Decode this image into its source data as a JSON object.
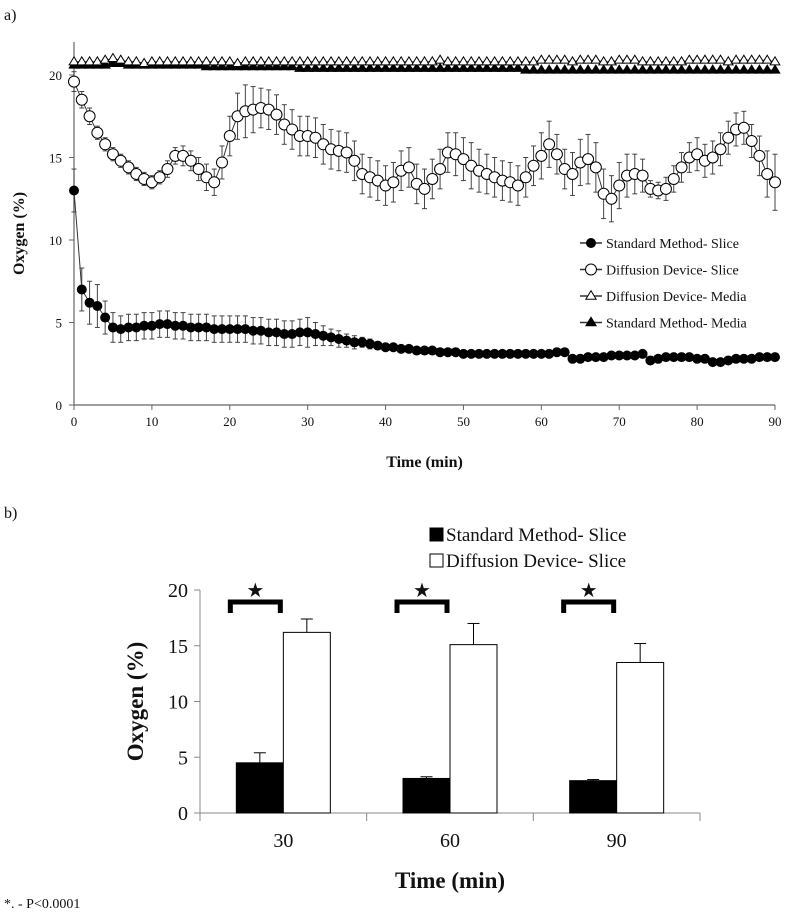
{
  "panel_a_label": "a)",
  "panel_b_label": "b)",
  "footnote": "*. - P<0.0001",
  "chart_data": [
    {
      "type": "line",
      "panel": "a",
      "title": "",
      "xlabel": "Time (min)",
      "ylabel": "Oxygen (%)",
      "xlim": [
        0,
        90
      ],
      "ylim": [
        0,
        22
      ],
      "xticks": [
        0,
        10,
        20,
        30,
        40,
        50,
        60,
        70,
        80,
        90
      ],
      "yticks": [
        0,
        5,
        10,
        15,
        20
      ],
      "legend_position": "right",
      "series": [
        {
          "name": "Standard Method- Slice",
          "marker": "filled-circle",
          "x": [
            0,
            1,
            2,
            3,
            4,
            5,
            6,
            7,
            8,
            9,
            10,
            11,
            12,
            13,
            14,
            15,
            16,
            17,
            18,
            19,
            20,
            21,
            22,
            23,
            24,
            25,
            26,
            27,
            28,
            29,
            30,
            31,
            32,
            33,
            34,
            35,
            36,
            37,
            38,
            39,
            40,
            41,
            42,
            43,
            44,
            45,
            46,
            47,
            48,
            49,
            50,
            51,
            52,
            53,
            54,
            55,
            56,
            57,
            58,
            59,
            60,
            61,
            62,
            63,
            64,
            65,
            66,
            67,
            68,
            69,
            70,
            71,
            72,
            73,
            74,
            75,
            76,
            77,
            78,
            79,
            80,
            81,
            82,
            83,
            84,
            85,
            86,
            87,
            88,
            89,
            90
          ],
          "y": [
            13.0,
            7.0,
            6.2,
            6.0,
            5.3,
            4.7,
            4.6,
            4.7,
            4.7,
            4.8,
            4.8,
            4.9,
            4.9,
            4.8,
            4.8,
            4.7,
            4.7,
            4.7,
            4.6,
            4.6,
            4.6,
            4.6,
            4.6,
            4.5,
            4.5,
            4.4,
            4.4,
            4.3,
            4.3,
            4.4,
            4.4,
            4.3,
            4.2,
            4.1,
            4.0,
            3.9,
            3.8,
            3.8,
            3.7,
            3.6,
            3.5,
            3.5,
            3.4,
            3.4,
            3.3,
            3.3,
            3.3,
            3.2,
            3.2,
            3.2,
            3.1,
            3.1,
            3.1,
            3.1,
            3.1,
            3.1,
            3.1,
            3.1,
            3.1,
            3.1,
            3.1,
            3.1,
            3.2,
            3.2,
            2.8,
            2.8,
            2.9,
            2.9,
            2.9,
            3.0,
            3.0,
            3.0,
            3.0,
            3.1,
            2.7,
            2.8,
            2.9,
            2.9,
            2.9,
            2.9,
            2.8,
            2.8,
            2.6,
            2.6,
            2.7,
            2.8,
            2.8,
            2.8,
            2.9,
            2.9,
            2.9
          ],
          "err": [
            1.3,
            1.3,
            1.3,
            1.3,
            1.0,
            0.9,
            0.8,
            0.8,
            0.8,
            0.8,
            0.8,
            0.8,
            0.8,
            0.8,
            0.8,
            0.8,
            0.8,
            0.8,
            0.8,
            0.8,
            0.8,
            0.8,
            0.8,
            0.8,
            0.8,
            0.8,
            0.8,
            0.8,
            0.8,
            0.8,
            0.9,
            0.7,
            0.6,
            0.5,
            0.5,
            0.4,
            0.4,
            0.3,
            0.3,
            0.2,
            0.2,
            0.2,
            0.2,
            0.1,
            0.1,
            0.1,
            0.1,
            0.1,
            0.1,
            0.1,
            0.1,
            0.1,
            0.1,
            0.1,
            0.1,
            0.1,
            0.1,
            0.1,
            0.1,
            0.1,
            0.1,
            0.1,
            0.1,
            0.1,
            0.1,
            0.1,
            0.1,
            0.1,
            0.1,
            0.1,
            0.1,
            0.1,
            0.1,
            0.1,
            0.1,
            0.1,
            0.1,
            0.1,
            0.1,
            0.1,
            0.1,
            0.1,
            0.1,
            0.1,
            0.1,
            0.1,
            0.1,
            0.1,
            0.1,
            0.1,
            0.1
          ]
        },
        {
          "name": "Diffusion Device- Slice",
          "marker": "open-circle",
          "x": [
            0,
            1,
            2,
            3,
            4,
            5,
            6,
            7,
            8,
            9,
            10,
            11,
            12,
            13,
            14,
            15,
            16,
            17,
            18,
            19,
            20,
            21,
            22,
            23,
            24,
            25,
            26,
            27,
            28,
            29,
            30,
            31,
            32,
            33,
            34,
            35,
            36,
            37,
            38,
            39,
            40,
            41,
            42,
            43,
            44,
            45,
            46,
            47,
            48,
            49,
            50,
            51,
            52,
            53,
            54,
            55,
            56,
            57,
            58,
            59,
            60,
            61,
            62,
            63,
            64,
            65,
            66,
            67,
            68,
            69,
            70,
            71,
            72,
            73,
            74,
            75,
            76,
            77,
            78,
            79,
            80,
            81,
            82,
            83,
            84,
            85,
            86,
            87,
            88,
            89,
            90
          ],
          "y": [
            19.6,
            18.5,
            17.5,
            16.5,
            15.8,
            15.2,
            14.8,
            14.4,
            14.0,
            13.7,
            13.5,
            13.8,
            14.3,
            15.1,
            15.1,
            14.8,
            14.3,
            13.8,
            13.5,
            14.7,
            16.3,
            17.5,
            17.8,
            17.9,
            18.0,
            17.9,
            17.6,
            17.0,
            16.7,
            16.3,
            16.3,
            16.2,
            15.8,
            15.5,
            15.4,
            15.3,
            14.8,
            14.0,
            13.8,
            13.6,
            13.3,
            13.5,
            14.2,
            14.4,
            13.4,
            13.1,
            13.7,
            14.3,
            15.3,
            15.2,
            14.9,
            14.5,
            14.2,
            14.0,
            13.8,
            13.6,
            13.5,
            13.3,
            13.8,
            14.5,
            15.1,
            15.8,
            15.2,
            14.3,
            14.0,
            14.7,
            14.9,
            14.4,
            12.8,
            12.5,
            13.3,
            13.9,
            14.0,
            13.9,
            13.1,
            13.0,
            13.1,
            13.7,
            14.4,
            15.0,
            15.2,
            14.8,
            15.0,
            15.5,
            16.2,
            16.7,
            16.8,
            16.0,
            15.1,
            14.0,
            13.5
          ],
          "err": [
            0.6,
            0.5,
            0.5,
            0.4,
            0.4,
            0.4,
            0.4,
            0.4,
            0.4,
            0.4,
            0.4,
            0.4,
            0.5,
            0.5,
            0.6,
            0.6,
            0.7,
            0.8,
            0.8,
            1.0,
            1.2,
            1.4,
            1.6,
            1.4,
            1.2,
            1.2,
            1.2,
            1.2,
            1.2,
            1.2,
            1.2,
            1.2,
            1.2,
            1.2,
            1.2,
            1.2,
            1.2,
            1.2,
            1.2,
            1.2,
            1.2,
            1.2,
            1.2,
            1.2,
            1.2,
            1.2,
            1.2,
            1.2,
            1.2,
            1.3,
            1.3,
            1.4,
            1.3,
            1.2,
            1.2,
            1.2,
            1.2,
            1.2,
            1.2,
            1.2,
            1.4,
            1.4,
            1.2,
            1.2,
            1.3,
            1.4,
            1.5,
            1.5,
            1.5,
            1.4,
            1.4,
            1.3,
            1.2,
            1.0,
            0.5,
            0.5,
            0.7,
            0.8,
            0.9,
            0.9,
            1.0,
            1.0,
            1.0,
            1.0,
            1.0,
            1.0,
            1.0,
            1.0,
            1.2,
            1.4,
            1.7
          ]
        },
        {
          "name": "Diffusion Device- Media",
          "marker": "open-triangle",
          "x": [
            0,
            1,
            2,
            3,
            4,
            5,
            6,
            7,
            8,
            9,
            10,
            11,
            12,
            13,
            14,
            15,
            16,
            17,
            18,
            19,
            20,
            21,
            22,
            23,
            24,
            25,
            26,
            27,
            28,
            29,
            30,
            31,
            32,
            33,
            34,
            35,
            36,
            37,
            38,
            39,
            40,
            41,
            42,
            43,
            44,
            45,
            46,
            47,
            48,
            49,
            50,
            51,
            52,
            53,
            54,
            55,
            56,
            57,
            58,
            59,
            60,
            61,
            62,
            63,
            64,
            65,
            66,
            67,
            68,
            69,
            70,
            71,
            72,
            73,
            74,
            75,
            76,
            77,
            78,
            79,
            80,
            81,
            82,
            83,
            84,
            85,
            86,
            87,
            88,
            89,
            90
          ],
          "y": [
            20.8,
            20.8,
            20.8,
            20.8,
            20.9,
            21.0,
            20.9,
            20.8,
            20.8,
            20.7,
            20.8,
            20.8,
            20.8,
            20.8,
            20.8,
            20.8,
            20.8,
            20.8,
            20.8,
            20.8,
            20.8,
            20.7,
            20.8,
            20.8,
            20.8,
            20.8,
            20.8,
            20.8,
            20.8,
            20.8,
            20.8,
            20.8,
            20.8,
            20.8,
            20.8,
            20.8,
            20.8,
            20.8,
            20.8,
            20.8,
            20.8,
            20.8,
            20.8,
            20.8,
            20.8,
            20.8,
            20.8,
            20.9,
            20.8,
            20.8,
            20.8,
            20.8,
            20.8,
            20.8,
            20.8,
            20.8,
            20.8,
            20.8,
            20.8,
            20.8,
            20.9,
            20.9,
            20.9,
            20.9,
            20.8,
            20.9,
            20.9,
            20.9,
            20.8,
            20.8,
            20.9,
            20.9,
            20.9,
            20.8,
            20.8,
            20.8,
            20.8,
            20.8,
            20.8,
            20.9,
            20.9,
            20.9,
            20.9,
            20.9,
            20.8,
            20.9,
            20.9,
            20.9,
            20.9,
            20.9,
            20.8
          ]
        },
        {
          "name": "Standard Method- Media",
          "marker": "filled-triangle",
          "x": [
            0,
            1,
            2,
            3,
            4,
            5,
            6,
            7,
            8,
            9,
            10,
            11,
            12,
            13,
            14,
            15,
            16,
            17,
            18,
            19,
            20,
            21,
            22,
            23,
            24,
            25,
            26,
            27,
            28,
            29,
            30,
            31,
            32,
            33,
            34,
            35,
            36,
            37,
            38,
            39,
            40,
            41,
            42,
            43,
            44,
            45,
            46,
            47,
            48,
            49,
            50,
            51,
            52,
            53,
            54,
            55,
            56,
            57,
            58,
            59,
            60,
            61,
            62,
            63,
            64,
            65,
            66,
            67,
            68,
            69,
            70,
            71,
            72,
            73,
            74,
            75,
            76,
            77,
            78,
            79,
            80,
            81,
            82,
            83,
            84,
            85,
            86,
            87,
            88,
            89,
            90
          ],
          "y": [
            20.6,
            20.6,
            20.6,
            20.6,
            20.6,
            20.7,
            20.7,
            20.6,
            20.6,
            20.6,
            20.6,
            20.6,
            20.6,
            20.6,
            20.6,
            20.6,
            20.6,
            20.5,
            20.5,
            20.5,
            20.5,
            20.5,
            20.5,
            20.5,
            20.5,
            20.5,
            20.5,
            20.5,
            20.5,
            20.4,
            20.4,
            20.4,
            20.4,
            20.4,
            20.4,
            20.4,
            20.4,
            20.4,
            20.4,
            20.4,
            20.4,
            20.4,
            20.4,
            20.4,
            20.4,
            20.4,
            20.4,
            20.4,
            20.4,
            20.4,
            20.4,
            20.4,
            20.4,
            20.4,
            20.4,
            20.4,
            20.4,
            20.4,
            20.3,
            20.3,
            20.3,
            20.3,
            20.3,
            20.3,
            20.3,
            20.3,
            20.3,
            20.3,
            20.3,
            20.3,
            20.3,
            20.3,
            20.3,
            20.3,
            20.3,
            20.3,
            20.3,
            20.3,
            20.3,
            20.3,
            20.3,
            20.3,
            20.3,
            20.3,
            20.3,
            20.3,
            20.3,
            20.3,
            20.3,
            20.3,
            20.3
          ]
        }
      ]
    },
    {
      "type": "bar",
      "panel": "b",
      "title": "",
      "xlabel": "Time (min)",
      "ylabel": "Oxygen (%)",
      "categories": [
        "30",
        "60",
        "90"
      ],
      "ylim": [
        0,
        20
      ],
      "yticks": [
        0,
        5,
        10,
        15,
        20
      ],
      "legend_position": "top",
      "significance_marker": "★",
      "series": [
        {
          "name": "Standard Method- Slice",
          "color": "#000000",
          "values": [
            4.5,
            3.1,
            2.9
          ],
          "err": [
            0.9,
            0.15,
            0.1
          ]
        },
        {
          "name": "Diffusion Device- Slice",
          "color": "#ffffff",
          "values": [
            16.2,
            15.1,
            13.5
          ],
          "err": [
            1.2,
            1.9,
            1.7
          ]
        }
      ]
    }
  ]
}
